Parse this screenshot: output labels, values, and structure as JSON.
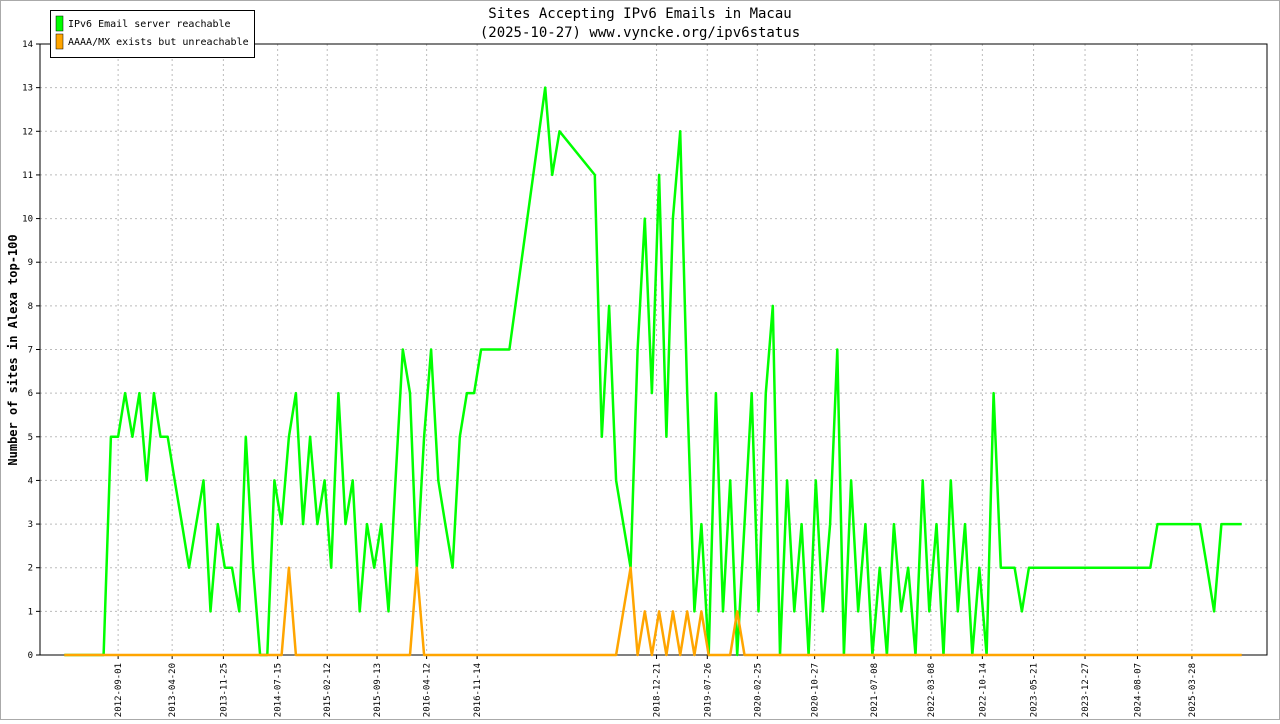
{
  "chart_data": {
    "type": "line",
    "title": "Sites Accepting IPv6 Emails in Macau",
    "subtitle": "(2025-10-27) www.vyncke.org/ipv6status",
    "y_label": "Number of sites in Alexa top-100",
    "xlim": [
      "2011-10-03",
      "2026-02-12"
    ],
    "xticks": [
      "2012-09-01",
      "2013-04-20",
      "2013-11-25",
      "2014-07-15",
      "2015-02-12",
      "2015-09-13",
      "2016-04-12",
      "2016-11-14",
      "2018-12-21",
      "2019-07-26",
      "2020-02-25",
      "2020-10-27",
      "2021-07-08",
      "2022-03-08",
      "2022-10-14",
      "2023-05-21",
      "2023-12-27",
      "2024-08-07",
      "2025-03-28"
    ],
    "ylim": [
      0,
      14
    ],
    "yticks": [
      0,
      1,
      2,
      3,
      4,
      5,
      6,
      7,
      8,
      9,
      10,
      11,
      12,
      13,
      14
    ],
    "grid": true,
    "legend": "upper left",
    "series": [
      {
        "name": "IPv6 Email server reachable",
        "color": "#00ff00",
        "x": [
          "2012-01-15",
          "2012-07",
          "2012-08",
          "2012-09",
          "2012-10",
          "2012-11",
          "2012-12",
          "2013-01",
          "2013-02",
          "2013-03",
          "2013-04",
          "2013-05",
          "2013-06",
          "2013-07",
          "2013-08",
          "2013-09",
          "2013-10",
          "2013-11",
          "2013-12",
          "2014-01",
          "2014-02",
          "2014-03",
          "2014-04",
          "2014-05",
          "2014-06",
          "2014-07",
          "2014-08",
          "2014-09",
          "2014-10",
          "2014-11",
          "2014-12",
          "2015-01",
          "2015-02",
          "2015-03",
          "2015-04",
          "2015-05",
          "2015-06",
          "2015-07",
          "2015-08",
          "2015-09",
          "2015-10",
          "2015-11",
          "2015-12",
          "2016-01",
          "2016-02",
          "2016-03",
          "2016-04",
          "2016-05",
          "2016-06",
          "2016-07",
          "2016-08",
          "2016-09",
          "2016-10",
          "2016-11",
          "2016-12",
          "2017-04",
          "2017-09",
          "2017-10",
          "2017-11",
          "2018-04",
          "2018-05",
          "2018-06",
          "2018-07",
          "2018-09",
          "2018-10",
          "2018-11",
          "2018-12",
          "2019-01",
          "2019-02",
          "2019-03",
          "2019-04",
          "2019-05",
          "2019-06",
          "2019-07",
          "2019-08",
          "2019-09",
          "2019-10",
          "2019-11",
          "2019-12",
          "2020-01",
          "2020-02",
          "2020-03",
          "2020-04",
          "2020-05",
          "2020-06",
          "2020-07",
          "2020-08",
          "2020-09",
          "2020-10",
          "2020-11",
          "2020-12",
          "2021-01",
          "2021-02",
          "2021-03",
          "2021-04",
          "2021-05",
          "2021-06",
          "2021-07",
          "2021-08",
          "2021-09",
          "2021-10",
          "2021-11",
          "2021-12",
          "2022-01",
          "2022-02",
          "2022-03",
          "2022-04",
          "2022-05",
          "2022-06",
          "2022-07",
          "2022-08",
          "2022-09",
          "2022-10",
          "2022-11",
          "2022-12",
          "2023-01",
          "2023-03",
          "2023-04",
          "2023-05",
          "2024-10",
          "2024-11",
          "2025-05",
          "2025-06",
          "2025-07",
          "2025-08",
          "2025-10-27"
        ],
        "values": [
          0,
          0,
          5,
          5,
          6,
          5,
          6,
          4,
          6,
          5,
          5,
          4,
          3,
          2,
          3,
          4,
          1,
          3,
          2,
          2,
          1,
          5,
          2,
          0,
          0,
          4,
          3,
          5,
          6,
          3,
          5,
          3,
          4,
          2,
          6,
          3,
          4,
          1,
          3,
          2,
          3,
          1,
          4,
          7,
          6,
          2,
          5,
          7,
          4,
          3,
          2,
          5,
          6,
          6,
          7,
          7,
          13,
          11,
          12,
          11,
          5,
          8,
          4,
          2,
          7,
          10,
          6,
          11,
          5,
          10,
          12,
          6,
          1,
          3,
          0,
          6,
          1,
          4,
          0,
          3,
          6,
          1,
          6,
          8,
          0,
          4,
          1,
          3,
          0,
          4,
          1,
          3,
          7,
          0,
          4,
          1,
          3,
          0,
          2,
          0,
          3,
          1,
          2,
          0,
          4,
          1,
          3,
          0,
          4,
          1,
          3,
          0,
          2,
          0,
          6,
          2,
          2,
          1,
          2,
          2,
          3,
          3,
          2,
          1,
          3,
          3
        ]
      },
      {
        "name": "AAAA/MX exists but unreachable",
        "color": "#ffa500",
        "x": [
          "2012-01-15",
          "2014-08",
          "2014-09",
          "2014-10",
          "2016-02",
          "2016-03",
          "2016-04",
          "2018-07",
          "2018-08",
          "2018-09",
          "2018-10",
          "2018-11",
          "2018-12",
          "2019-01",
          "2019-02",
          "2019-03",
          "2019-04",
          "2019-05",
          "2019-06",
          "2019-07",
          "2019-08",
          "2019-11",
          "2019-12",
          "2020-01",
          "2025-10-27"
        ],
        "values": [
          0,
          0,
          2,
          0,
          0,
          2,
          0,
          0,
          1,
          2,
          0,
          1,
          0,
          1,
          0,
          1,
          0,
          1,
          0,
          1,
          0,
          0,
          1,
          0,
          0
        ]
      }
    ]
  }
}
